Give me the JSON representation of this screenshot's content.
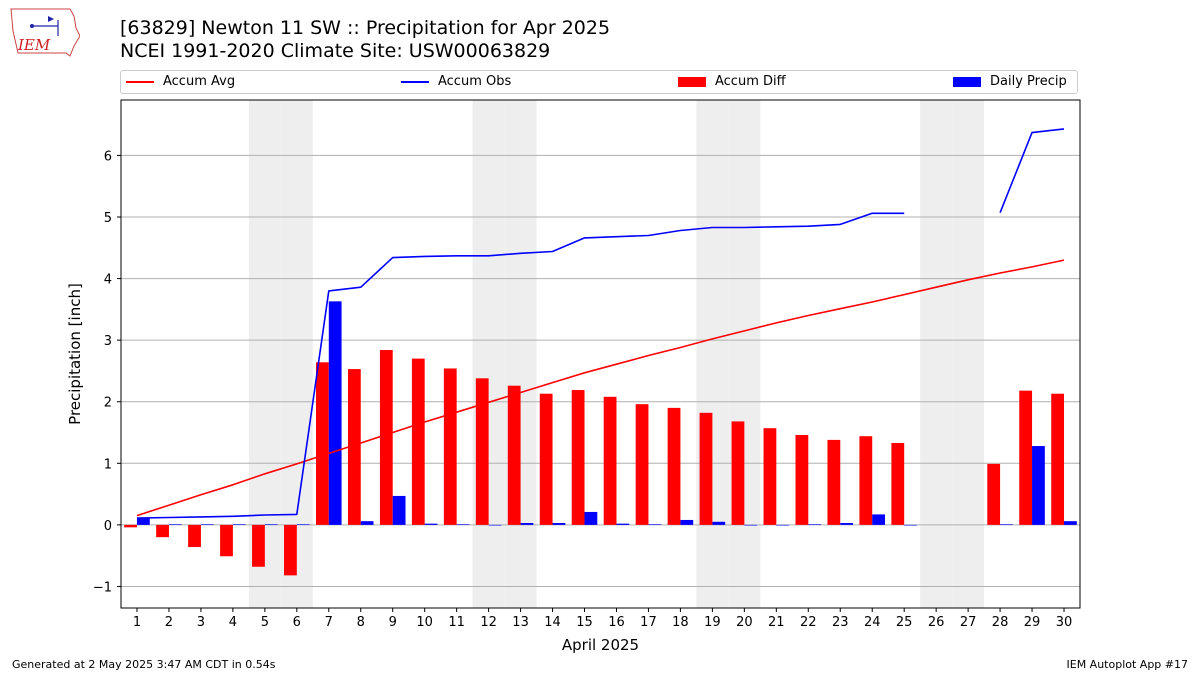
{
  "header": {
    "title_line1": "[63829] Newton 11 SW :: Precipitation for Apr 2025",
    "title_line2": "NCEI 1991-2020 Climate Site: USW00063829"
  },
  "logo": {
    "text": "IEM"
  },
  "footer": {
    "left": "Generated at 2 May 2025 3:47 AM CDT in 0.54s",
    "right": "IEM Autoplot App #17"
  },
  "colors": {
    "avg": "#ff0000",
    "obs": "#0000ff",
    "diff": "#ff0000",
    "daily": "#0000ff",
    "weekend": "#eeeeee",
    "grid": "#b0b0b0"
  },
  "chart_data": {
    "type": "bar",
    "xlabel": "April 2025",
    "ylabel": "Precipitation [inch]",
    "ylim": [
      -1.35,
      6.9
    ],
    "xlim": [
      0.5,
      30.5
    ],
    "yticks": [
      -1,
      0,
      1,
      2,
      3,
      4,
      5,
      6
    ],
    "grid": "y-major",
    "legend_position": "top",
    "shaded_weekend_days": [
      5,
      6,
      12,
      13,
      19,
      20,
      26,
      27
    ],
    "x": [
      1,
      2,
      3,
      4,
      5,
      6,
      7,
      8,
      9,
      10,
      11,
      12,
      13,
      14,
      15,
      16,
      17,
      18,
      19,
      20,
      21,
      22,
      23,
      24,
      25,
      26,
      27,
      28,
      29,
      30
    ],
    "series": [
      {
        "name": "Accum Avg",
        "kind": "line",
        "values": [
          0.15,
          0.32,
          0.49,
          0.65,
          0.83,
          0.99,
          1.16,
          1.33,
          1.5,
          1.67,
          1.83,
          1.99,
          2.15,
          2.31,
          2.47,
          2.61,
          2.75,
          2.88,
          3.02,
          3.15,
          3.28,
          3.4,
          3.51,
          3.62,
          3.74,
          3.86,
          3.98,
          4.09,
          4.19,
          4.3
        ]
      },
      {
        "name": "Accum Obs",
        "kind": "line",
        "values": [
          0.11,
          0.12,
          0.13,
          0.14,
          0.16,
          0.17,
          3.8,
          3.86,
          4.34,
          4.36,
          4.37,
          4.37,
          4.41,
          4.44,
          4.66,
          4.68,
          4.7,
          4.78,
          4.83,
          4.83,
          4.84,
          4.85,
          4.88,
          5.06,
          5.06,
          null,
          null,
          5.07,
          6.37,
          6.43
        ]
      },
      {
        "name": "Accum Diff",
        "kind": "bar",
        "values": [
          -0.04,
          -0.2,
          -0.36,
          -0.51,
          -0.68,
          -0.82,
          2.64,
          2.53,
          2.84,
          2.7,
          2.54,
          2.38,
          2.26,
          2.13,
          2.19,
          2.08,
          1.96,
          1.9,
          1.82,
          1.68,
          1.57,
          1.46,
          1.38,
          1.44,
          1.33,
          null,
          null,
          0.99,
          2.18,
          2.13
        ]
      },
      {
        "name": "Daily Precip",
        "kind": "bar",
        "values": [
          0.11,
          0.01,
          0.01,
          0.01,
          0.01,
          0.01,
          3.63,
          0.06,
          0.47,
          0.02,
          0.01,
          0.0,
          0.03,
          0.03,
          0.21,
          0.02,
          0.01,
          0.08,
          0.05,
          0.0,
          0.0,
          0.01,
          0.03,
          0.17,
          0.0,
          null,
          null,
          0.01,
          1.28,
          0.06
        ]
      }
    ]
  }
}
